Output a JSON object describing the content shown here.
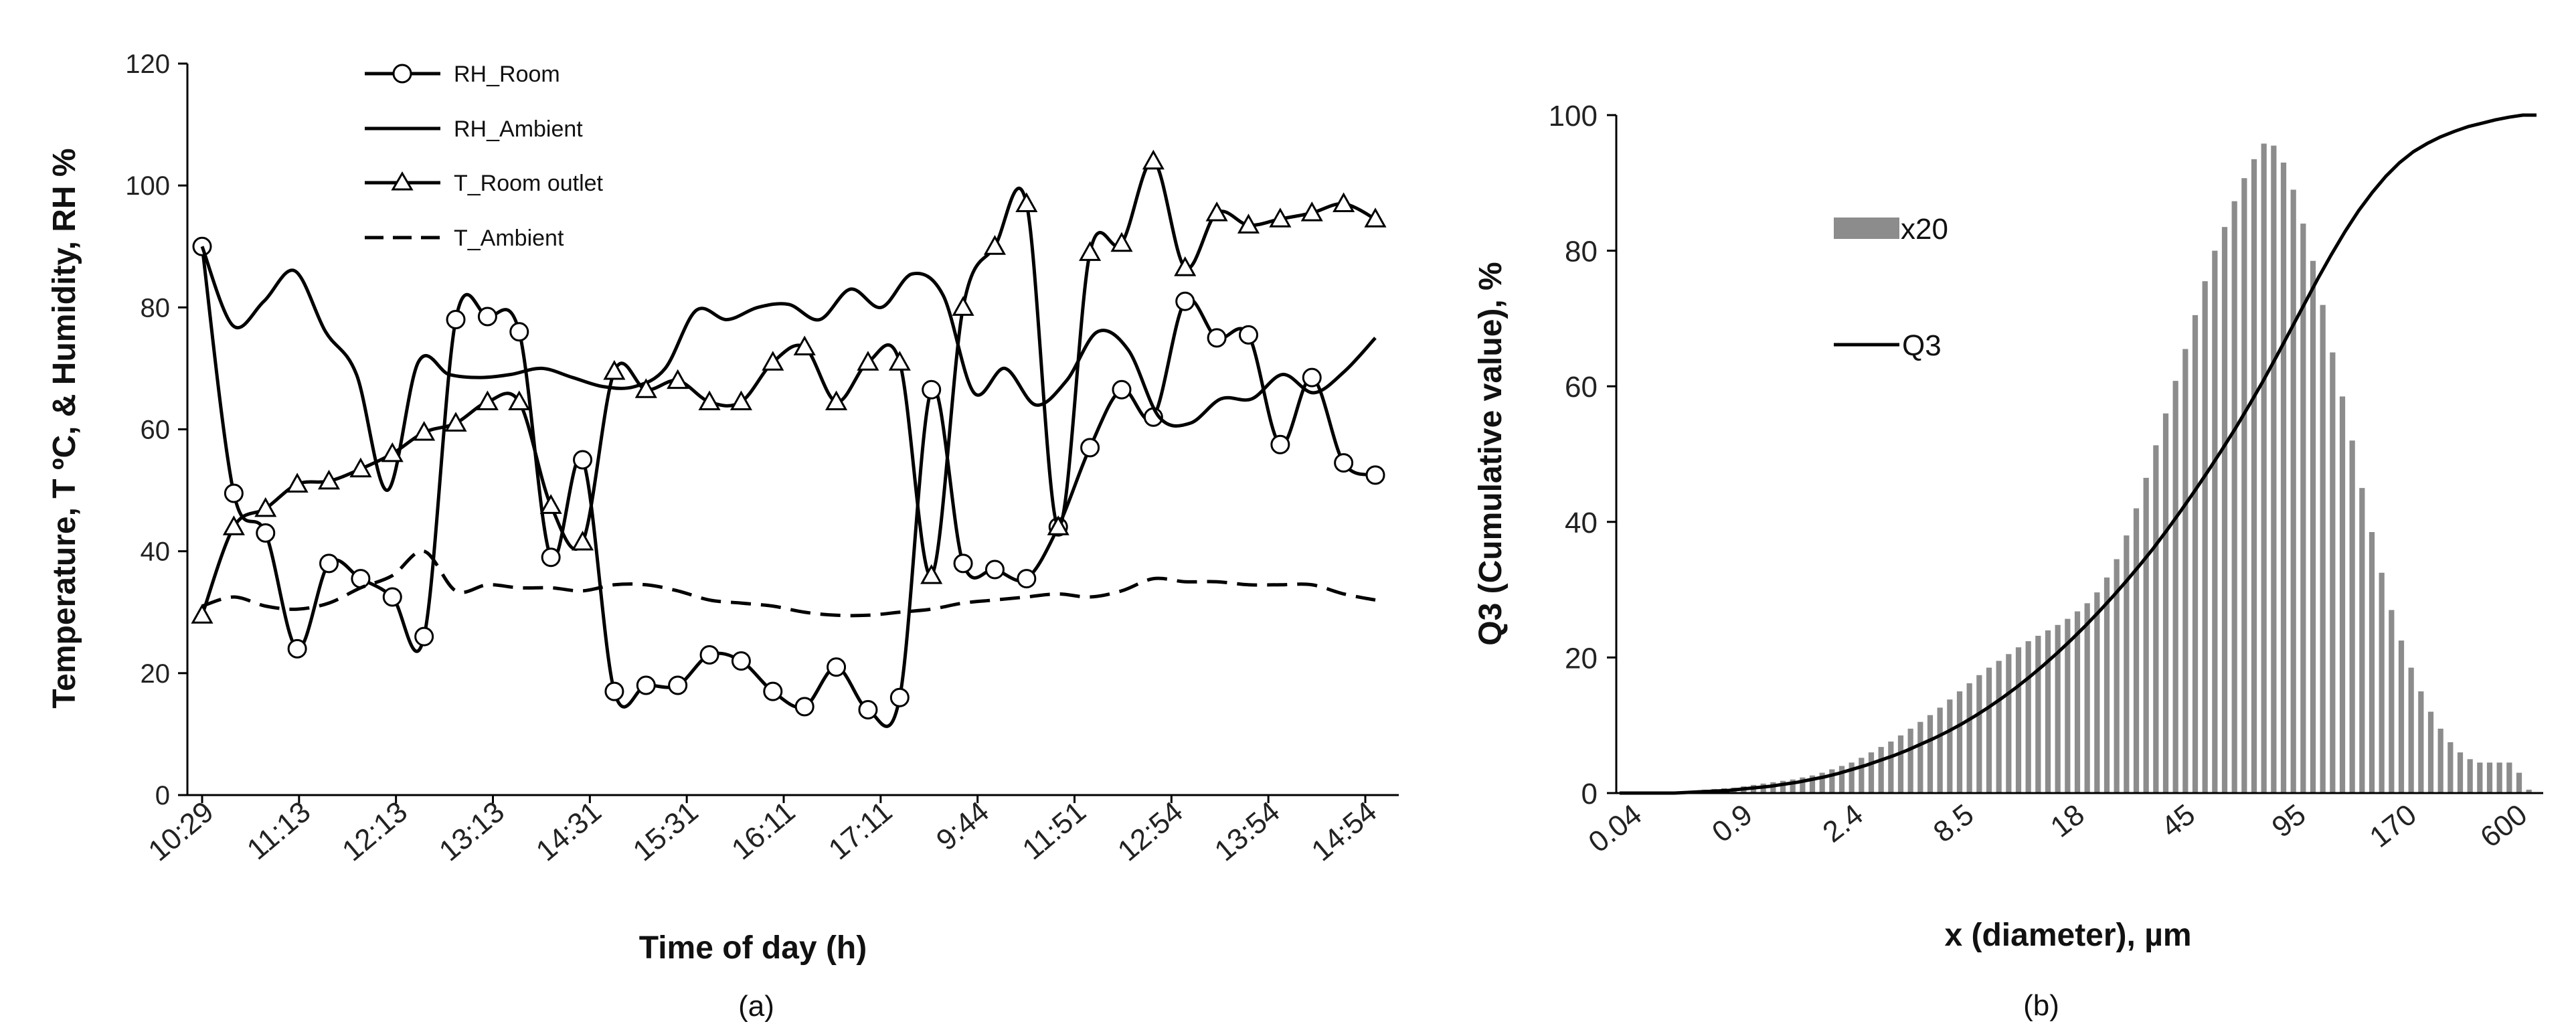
{
  "charts": [
    {
      "type": "line",
      "caption": "(a)",
      "xlabel": "Time of day (h)",
      "ylabel": "Temperature, T ºC, & Humidity, RH %",
      "ylim": [
        0,
        120
      ],
      "yticks": [
        "0",
        "20",
        "40",
        "60",
        "80",
        "100",
        "120"
      ],
      "xticks": [
        "10:29",
        "11:13",
        "12:13",
        "13:13",
        "14:31",
        "15:31",
        "16:11",
        "17:11",
        "9:44",
        "11:51",
        "12:54",
        "13:54",
        "14:54"
      ],
      "series": [
        {
          "name": "RH_Room",
          "marker": "circle",
          "dash": "solid",
          "values": [
            90,
            49.5,
            43,
            24,
            38,
            35.5,
            32.5,
            26,
            78,
            78.5,
            76,
            39,
            55,
            17,
            18,
            18,
            23,
            22,
            17,
            14.5,
            21,
            14,
            16,
            66.5,
            38,
            37,
            35.5,
            44,
            57,
            66.5,
            62,
            81,
            75,
            75.5,
            57.5,
            68.5,
            54.5,
            52.5
          ]
        },
        {
          "name": "RH_Ambient",
          "marker": "none",
          "dash": "solid",
          "values": [
            90,
            77,
            81,
            86,
            76,
            69,
            50,
            71,
            69,
            68.5,
            69,
            70,
            68.5,
            67,
            67,
            70,
            79.5,
            78,
            80,
            80.5,
            78,
            83,
            80,
            85.5,
            82,
            66,
            70,
            64,
            68,
            76,
            73,
            62,
            61,
            65,
            65,
            69,
            66,
            69.5,
            75
          ]
        },
        {
          "name": "T_Room outlet",
          "marker": "triangle",
          "dash": "solid",
          "values": [
            29.5,
            44,
            47,
            51,
            51.5,
            53.5,
            56,
            59.5,
            61,
            64.5,
            64.5,
            47.5,
            41.5,
            69.5,
            66.5,
            68,
            64.5,
            64.5,
            71,
            73.5,
            64.5,
            71,
            71,
            36,
            80,
            90,
            97,
            44,
            89,
            90.5,
            104,
            86.5,
            95.5,
            93.5,
            94.5,
            95.5,
            97,
            94.5
          ]
        },
        {
          "name": "T_Ambient",
          "marker": "none",
          "dash": "dashed",
          "values": [
            31,
            32.5,
            31,
            30.5,
            31.5,
            34,
            36,
            40,
            33.5,
            34.5,
            34,
            34,
            33.5,
            34.5,
            34.5,
            33.5,
            32,
            31.5,
            31,
            30,
            29.5,
            29.5,
            30,
            30.5,
            31.5,
            32,
            32.5,
            33,
            32.5,
            33.5,
            35.5,
            35,
            35,
            34.5,
            34.5,
            34.5,
            33,
            32
          ]
        }
      ]
    },
    {
      "type": "bar+line",
      "caption": "(b)",
      "xlabel": "x (diameter), µm",
      "ylabel": "Q3 (Cumulative value), %",
      "ylim": [
        0,
        100
      ],
      "yticks": [
        "0",
        "20",
        "40",
        "60",
        "80",
        "100"
      ],
      "xticks": [
        "0.04",
        "0.9",
        "2.4",
        "8.5",
        "18",
        "45",
        "95",
        "170",
        "600"
      ],
      "series": [
        {
          "name": "x20",
          "kind": "bar",
          "values": [
            0,
            0,
            0,
            0,
            0,
            0,
            0,
            0,
            0.5,
            0.6,
            0.7,
            0.8,
            1,
            1.2,
            1.4,
            1.6,
            1.8,
            2,
            2.3,
            2.6,
            3,
            3.5,
            4,
            4.5,
            5.2,
            6,
            6.8,
            7.6,
            8.5,
            9.5,
            10.5,
            11.5,
            12.6,
            13.8,
            15,
            16.2,
            17.4,
            18.5,
            19.5,
            20.5,
            21.5,
            22.4,
            23.2,
            24,
            24.8,
            25.7,
            26.8,
            28,
            29.6,
            31.8,
            34.5,
            38,
            42,
            46.5,
            51.3,
            56,
            60.8,
            65.5,
            70.5,
            75.5,
            80,
            83.5,
            87.3,
            90.7,
            93.5,
            95.8,
            95.5,
            93,
            89,
            84,
            78.5,
            72,
            65,
            58.5,
            52,
            45,
            38.5,
            32.5,
            27,
            22.5,
            18.5,
            15,
            12,
            9.5,
            7.5,
            6,
            5,
            4.5,
            4.5,
            4.5,
            4.5,
            3,
            0.5
          ]
        },
        {
          "name": "Q3",
          "kind": "line",
          "values": [
            0,
            0,
            0,
            0,
            0,
            0.1,
            0.2,
            0.3,
            0.4,
            0.6,
            0.8,
            1,
            1.3,
            1.6,
            2,
            2.4,
            2.9,
            3.5,
            4.1,
            4.8,
            5.5,
            6.3,
            7.2,
            8.1,
            9.1,
            10.2,
            11.4,
            12.7,
            14.1,
            15.6,
            17.2,
            18.9,
            20.7,
            22.6,
            24.6,
            26.7,
            28.9,
            31.2,
            33.6,
            36.1,
            38.8,
            41.6,
            44.5,
            47.5,
            50.6,
            53.8,
            57.2,
            60.7,
            64.4,
            68.2,
            72,
            75.8,
            79.4,
            82.8,
            85.9,
            88.6,
            91,
            93,
            94.6,
            95.8,
            96.8,
            97.6,
            98.3,
            98.8,
            99.3,
            99.7,
            100,
            100
          ]
        }
      ]
    }
  ]
}
